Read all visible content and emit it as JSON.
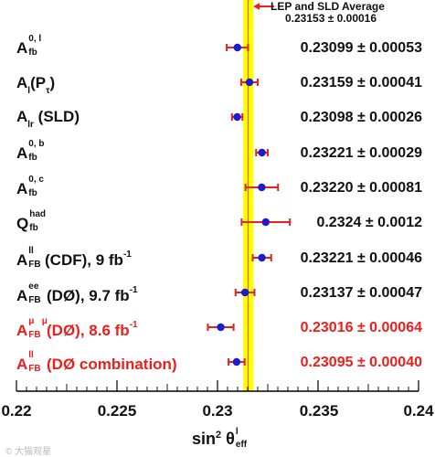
{
  "chart_data": {
    "type": "scatter",
    "title": "",
    "xlabel": "sin² θ_eff^l",
    "ylabel": "",
    "xlim": [
      0.22,
      0.24
    ],
    "x_ticks": [
      "0.22",
      "0.225",
      "0.23",
      "0.235",
      "0.24"
    ],
    "grid": false,
    "reference_band": {
      "label": "LEP and SLD Average",
      "value_text": "0.23153 ± 0.00016",
      "value": 0.23153,
      "error": 0.00016,
      "color": "#ffff00"
    },
    "series": [
      {
        "label": "A_fb^{0,l}",
        "value": 0.23099,
        "error": 0.00053,
        "value_text": "0.23099 ± 0.00053",
        "highlight": false
      },
      {
        "label": "A_l(P_τ)",
        "value": 0.23159,
        "error": 0.00041,
        "value_text": "0.23159 ± 0.00041",
        "highlight": false
      },
      {
        "label": "A_lr (SLD)",
        "value": 0.23098,
        "error": 0.00026,
        "value_text": "0.23098 ± 0.00026",
        "highlight": false
      },
      {
        "label": "A_fb^{0,b}",
        "value": 0.23221,
        "error": 0.00029,
        "value_text": "0.23221 ± 0.00029",
        "highlight": false
      },
      {
        "label": "A_fb^{0,c}",
        "value": 0.2322,
        "error": 0.00081,
        "value_text": "0.23220 ± 0.00081",
        "highlight": false
      },
      {
        "label": "Q_fb^{had}",
        "value": 0.2324,
        "error": 0.0012,
        "value_text": "0.2324 ± 0.0012",
        "highlight": false
      },
      {
        "label": "A_FB^{ll} (CDF), 9 fb^-1",
        "value": 0.23221,
        "error": 0.00046,
        "value_text": "0.23221 ± 0.00046",
        "highlight": false
      },
      {
        "label": "A_FB^{ee} (DØ), 9.7 fb^-1",
        "value": 0.23137,
        "error": 0.00047,
        "value_text": "0.23137 ± 0.00047",
        "highlight": false
      },
      {
        "label": "A_FB^{μμ} (DØ), 8.6 fb^-1",
        "value": 0.23016,
        "error": 0.00064,
        "value_text": "0.23016 ± 0.00064",
        "highlight": true
      },
      {
        "label": "A_FB^{ll} (DØ combination)",
        "value": 0.23095,
        "error": 0.0004,
        "value_text": "0.23095 ± 0.00040",
        "highlight": true
      }
    ],
    "colors": {
      "marker": "#1c1ccf",
      "errorbar": "#e8201e",
      "band": "#ffff00",
      "band_line": "#e8201e",
      "highlight_text": "#e8201e"
    }
  },
  "labels": {
    "r0": {
      "base": "A",
      "sup": "0, l",
      "sub": "fb",
      "tail": ""
    },
    "r1": {
      "base": "A",
      "sub": "l",
      "tail": "(P",
      "sub2": "τ",
      "close": ")"
    },
    "r2": {
      "base": "A",
      "sub": "lr",
      "tail": " (SLD)"
    },
    "r3": {
      "base": "A",
      "sup": "0, b",
      "sub": "fb",
      "tail": ""
    },
    "r4": {
      "base": "A",
      "sup": "0, c",
      "sub": "fb",
      "tail": ""
    },
    "r5": {
      "base": "Q",
      "sup": "had",
      "sub": "fb",
      "tail": ""
    },
    "r6": {
      "base": "A",
      "sup": "ll",
      "sub": "FB",
      "tail": " (CDF), 9 fb",
      "exp": "-1"
    },
    "r7": {
      "base": "A",
      "sup": "ee",
      "sub": "FB",
      "tail": " (DØ), 9.7 fb",
      "exp": "-1"
    },
    "r8": {
      "base": "A",
      "sup": "μ",
      "sup2": "μ",
      "sub": "FB",
      "tail": " (DØ), 8.6 fb",
      "exp": "-1"
    },
    "r9": {
      "base": "A",
      "sup": "ll",
      "sub": "FB",
      "tail": " (DØ combination)"
    }
  },
  "axis_title": {
    "main": "sin",
    "sq": "2",
    "theta": "θ",
    "sup": "l",
    "sub": "eff"
  },
  "watermark": "© 大猫观星"
}
